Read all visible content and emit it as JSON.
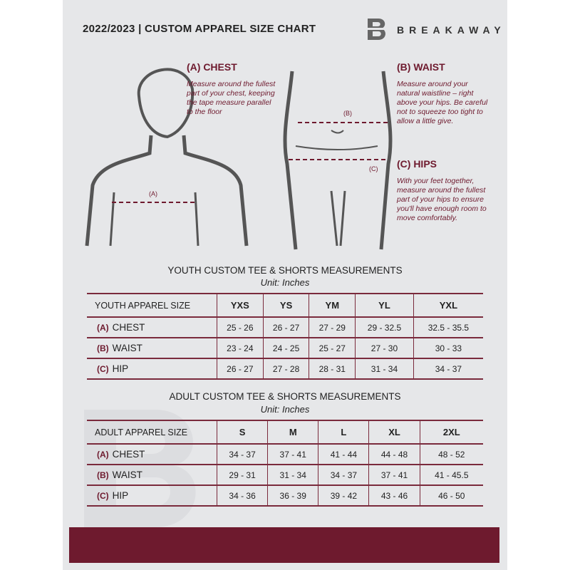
{
  "header": {
    "title": "2022/2023  |  CUSTOM APPAREL SIZE CHART",
    "brand": "BREAKAWAY",
    "logo_letter": "B"
  },
  "measures": {
    "chest": {
      "heading": "(A) CHEST",
      "text": "Measure around the fullest part of your chest, keeping the tape measure parallel to the floor",
      "marker": "(A)"
    },
    "waist": {
      "heading": "(B) WAIST",
      "text": "Measure around your natural waistline – right above your hips. Be careful not to squeeze too tight to allow a little give.",
      "marker": "(B)"
    },
    "hips": {
      "heading": "(C) HIPS",
      "text": "With your feet together, measure around the fullest part of your hips to ensure you'll have enough room to move comfortably.",
      "marker": "(C)"
    }
  },
  "youth": {
    "title": "YOUTH CUSTOM TEE & SHORTS MEASUREMENTS",
    "unit": "Unit: Inches",
    "size_label": "YOUTH APPAREL SIZE",
    "sizes": [
      "YXS",
      "YS",
      "YM",
      "YL",
      "YXL"
    ],
    "rows": [
      {
        "letter": "(A)",
        "name": "CHEST",
        "values": [
          "25 - 26",
          "26 - 27",
          "27 - 29",
          "29 - 32.5",
          "32.5 - 35.5"
        ]
      },
      {
        "letter": "(B)",
        "name": "WAIST",
        "values": [
          "23 - 24",
          "24 - 25",
          "25 - 27",
          "27 - 30",
          "30 - 33"
        ]
      },
      {
        "letter": "(C)",
        "name": "HIP",
        "values": [
          "26 - 27",
          "27 - 28",
          "28 - 31",
          "31 - 34",
          "34 - 37"
        ]
      }
    ]
  },
  "adult": {
    "title": "ADULT CUSTOM TEE & SHORTS MEASUREMENTS",
    "unit": "Unit: Inches",
    "size_label": "ADULT APPAREL SIZE",
    "sizes": [
      "S",
      "M",
      "L",
      "XL",
      "2XL"
    ],
    "rows": [
      {
        "letter": "(A)",
        "name": "CHEST",
        "values": [
          "34 - 37",
          "37 - 41",
          "41 - 44",
          "44 - 48",
          "48 - 52"
        ]
      },
      {
        "letter": "(B)",
        "name": "WAIST",
        "values": [
          "29 - 31",
          "31 - 34",
          "34 - 37",
          "37 - 41",
          "41 - 45.5"
        ]
      },
      {
        "letter": "(C)",
        "name": "HIP",
        "values": [
          "34 - 36",
          "36 - 39",
          "39 - 42",
          "43 - 46",
          "46 - 50"
        ]
      }
    ]
  },
  "colors": {
    "accent": "#6e1a2e",
    "panel": "#e6e7e9"
  }
}
